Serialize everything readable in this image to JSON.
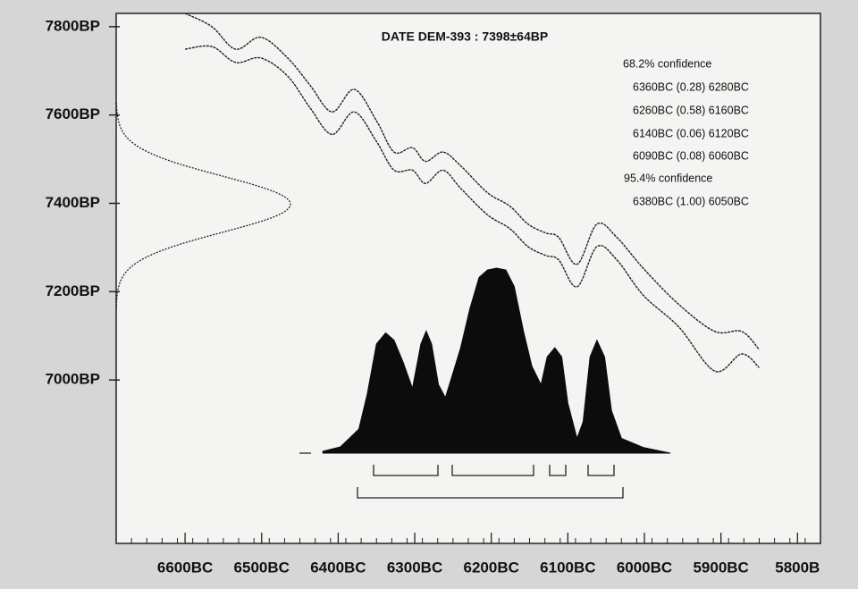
{
  "chart_data": {
    "type": "calibration",
    "title": "DATE DEM-393 : 7398±64BP",
    "measurement": {
      "mean": 7398,
      "error": 64
    },
    "xlim": [
      6690,
      5770
    ],
    "xticks": [
      {
        "value": 6600,
        "label": "6600BC"
      },
      {
        "value": 6500,
        "label": "6500BC"
      },
      {
        "value": 6400,
        "label": "6400BC"
      },
      {
        "value": 6300,
        "label": "6300BC"
      },
      {
        "value": 6200,
        "label": "6200BC"
      },
      {
        "value": 6100,
        "label": "6100BC"
      },
      {
        "value": 6000,
        "label": "6000BC"
      },
      {
        "value": 5900,
        "label": "5900BC"
      },
      {
        "value": 5800,
        "label": "5800B"
      }
    ],
    "ylim": [
      6630,
      7830
    ],
    "yticks": [
      {
        "value": 7000,
        "label": "7000BP"
      },
      {
        "value": 7200,
        "label": "7200BP"
      },
      {
        "value": 7400,
        "label": "7400BP"
      },
      {
        "value": 7600,
        "label": "7600BP"
      },
      {
        "value": 7800,
        "label": "7800BP"
      }
    ],
    "calibration_curve": {
      "x": [
        6600,
        6565,
        6534,
        6501,
        6466,
        6437,
        6408,
        6379,
        6350,
        6327,
        6303,
        6286,
        6263,
        6240,
        6205,
        6176,
        6152,
        6129,
        6112,
        6088,
        6062,
        6036,
        6001,
        5955,
        5908,
        5873,
        5850
      ],
      "upper": [
        7830,
        7800,
        7749,
        7776,
        7729,
        7668,
        7607,
        7658,
        7587,
        7516,
        7526,
        7495,
        7516,
        7485,
        7424,
        7394,
        7353,
        7333,
        7323,
        7262,
        7353,
        7323,
        7252,
        7171,
        7110,
        7110,
        7069
      ],
      "lower": [
        7749,
        7755,
        7719,
        7729,
        7688,
        7617,
        7556,
        7607,
        7540,
        7475,
        7475,
        7445,
        7475,
        7434,
        7374,
        7343,
        7302,
        7282,
        7272,
        7211,
        7302,
        7272,
        7191,
        7120,
        7020,
        7059,
        7028
      ]
    },
    "probability": {
      "x": [
        6420,
        6397,
        6373,
        6362,
        6350,
        6338,
        6327,
        6315,
        6303,
        6292,
        6285,
        6278,
        6269,
        6260,
        6251,
        6240,
        6228,
        6216,
        6205,
        6193,
        6181,
        6170,
        6158,
        6147,
        6135,
        6127,
        6117,
        6108,
        6100,
        6088,
        6080,
        6071,
        6062,
        6052,
        6043,
        6030,
        6001,
        5966
      ],
      "values": [
        1,
        3.4,
        13,
        32,
        59,
        65,
        61,
        49,
        35,
        59,
        66,
        59,
        37,
        30,
        42,
        57,
        78,
        95,
        99,
        100,
        99,
        90,
        66,
        47,
        37,
        52,
        57,
        52,
        27,
        8,
        17,
        52,
        61,
        52,
        23,
        8,
        3,
        0
      ]
    },
    "confidence_lines": [
      "68.2% confidence",
      "6360BC (0.28) 6280BC",
      "6260BC (0.58) 6160BC",
      "6140BC (0.06) 6120BC",
      "6090BC (0.08) 6060BC",
      "95.4% confidence",
      "6380BC (1.00) 6050BC"
    ]
  }
}
